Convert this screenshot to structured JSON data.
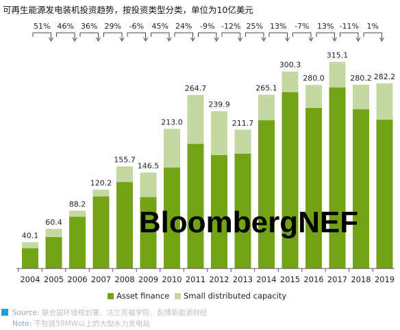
{
  "title": "可再生能源发电装机投资趋势，按投资类型分类，单位为10亿美元",
  "watermark": "BloombergNEF",
  "colors": {
    "asset_finance": "#73a315",
    "small_distributed": "#c4d8a1",
    "axis": "#555555",
    "source_marker": "#1f9ed8"
  },
  "source_label": "Source:",
  "source_text": "联合国环境规划署、法兰克福学院、彭博新能源财经",
  "note_label": "Note:",
  "note_text": "不包括50MW以上的大型水力发电站",
  "chart_data": {
    "type": "bar",
    "stacked": true,
    "categories": [
      "2004",
      "2005",
      "2006",
      "2007",
      "2008",
      "2009",
      "2010",
      "2011",
      "2012",
      "2013",
      "2014",
      "2015",
      "2016",
      "2017",
      "2018",
      "2019"
    ],
    "totals": [
      "40.1",
      "60.4",
      "88.2",
      "120.2",
      "155.7",
      "146.5",
      "213.0",
      "264.7",
      "239.9",
      "211.7",
      "265.1",
      "300.3",
      "280.0",
      "315.1",
      "280.2",
      "282.2"
    ],
    "growth": [
      "51%",
      "46%",
      "36%",
      "29%",
      "-6%",
      "45%",
      "24%",
      "-9%",
      "-12%",
      "25%",
      "13%",
      "-7%",
      "13%",
      "-11%",
      "1%"
    ],
    "series": [
      {
        "name": "Asset finance",
        "values": [
          31,
          48,
          79,
          110,
          132,
          109,
          154,
          190,
          173,
          175,
          226,
          269,
          245,
          276,
          243,
          227
        ]
      },
      {
        "name": "Small distributed capacity",
        "values": [
          9.1,
          12.4,
          9.2,
          10.2,
          23.7,
          37.5,
          59.0,
          74.7,
          66.9,
          36.7,
          39.1,
          31.3,
          35.0,
          39.1,
          37.2,
          55.2
        ]
      }
    ],
    "ylim": [
      0,
      320
    ],
    "grid": false,
    "legend": "bottom"
  }
}
